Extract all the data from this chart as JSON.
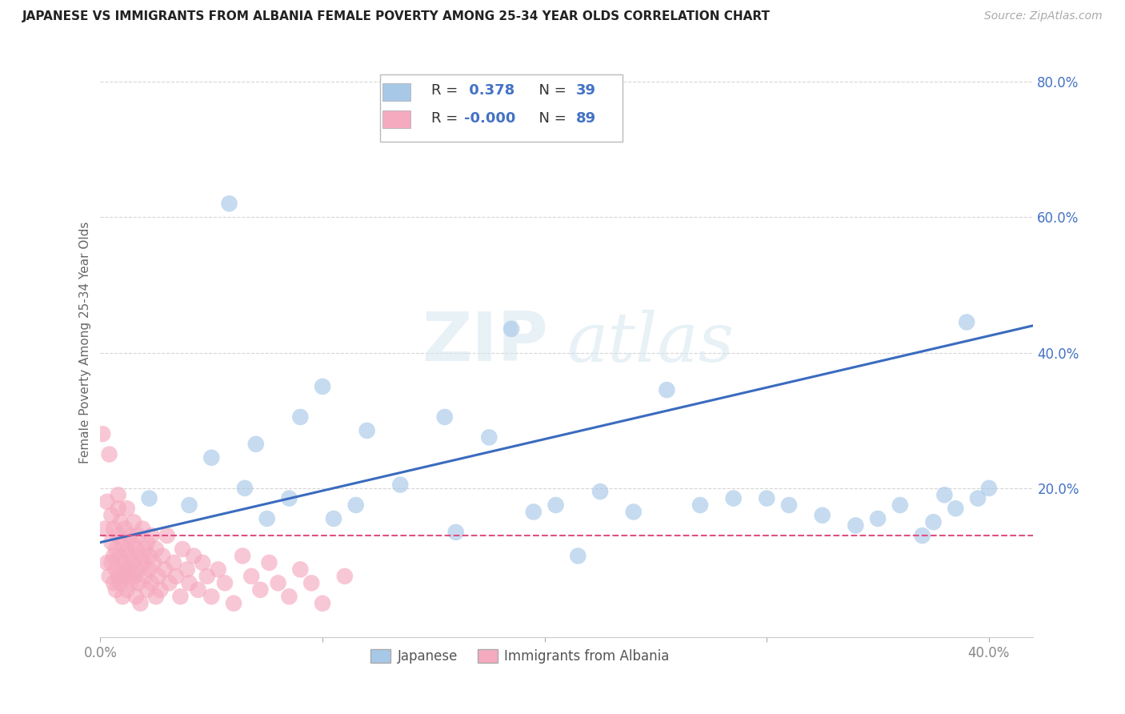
{
  "title": "JAPANESE VS IMMIGRANTS FROM ALBANIA FEMALE POVERTY AMONG 25-34 YEAR OLDS CORRELATION CHART",
  "source": "Source: ZipAtlas.com",
  "ylabel": "Female Poverty Among 25-34 Year Olds",
  "xlim": [
    0.0,
    0.42
  ],
  "ylim": [
    -0.02,
    0.85
  ],
  "xticks": [
    0.0,
    0.1,
    0.2,
    0.3,
    0.4
  ],
  "xticklabels": [
    "0.0%",
    "",
    "",
    "",
    "40.0%"
  ],
  "yticks": [
    0.2,
    0.4,
    0.6,
    0.8
  ],
  "yticklabels": [
    "20.0%",
    "40.0%",
    "60.0%",
    "80.0%"
  ],
  "japanese_R": 0.378,
  "japanese_N": 39,
  "albania_R": -0.0,
  "albania_N": 89,
  "japanese_color": "#a8c8e8",
  "albania_color": "#f5aabf",
  "japanese_line_color": "#3a6bbf",
  "albania_line_color": "#e05080",
  "background_color": "#ffffff",
  "grid_color": "#cccccc",
  "tick_color": "#4472c4",
  "japanese_x": [
    0.022,
    0.04,
    0.05,
    0.058,
    0.065,
    0.07,
    0.075,
    0.085,
    0.09,
    0.1,
    0.105,
    0.115,
    0.12,
    0.135,
    0.155,
    0.16,
    0.175,
    0.185,
    0.195,
    0.205,
    0.215,
    0.225,
    0.24,
    0.255,
    0.27,
    0.285,
    0.3,
    0.31,
    0.325,
    0.34,
    0.35,
    0.36,
    0.37,
    0.375,
    0.38,
    0.385,
    0.39,
    0.395,
    0.4
  ],
  "japanese_y": [
    0.185,
    0.175,
    0.245,
    0.62,
    0.2,
    0.265,
    0.155,
    0.185,
    0.305,
    0.35,
    0.155,
    0.175,
    0.285,
    0.205,
    0.305,
    0.135,
    0.275,
    0.435,
    0.165,
    0.175,
    0.1,
    0.195,
    0.165,
    0.345,
    0.175,
    0.185,
    0.185,
    0.175,
    0.16,
    0.145,
    0.155,
    0.175,
    0.13,
    0.15,
    0.19,
    0.17,
    0.445,
    0.185,
    0.2
  ],
  "albania_x": [
    0.001,
    0.002,
    0.003,
    0.003,
    0.004,
    0.004,
    0.005,
    0.005,
    0.005,
    0.006,
    0.006,
    0.006,
    0.007,
    0.007,
    0.007,
    0.008,
    0.008,
    0.008,
    0.008,
    0.009,
    0.009,
    0.009,
    0.01,
    0.01,
    0.01,
    0.011,
    0.011,
    0.011,
    0.012,
    0.012,
    0.012,
    0.013,
    0.013,
    0.013,
    0.014,
    0.014,
    0.015,
    0.015,
    0.015,
    0.016,
    0.016,
    0.017,
    0.017,
    0.017,
    0.018,
    0.018,
    0.019,
    0.019,
    0.02,
    0.02,
    0.021,
    0.021,
    0.022,
    0.022,
    0.023,
    0.023,
    0.024,
    0.025,
    0.025,
    0.026,
    0.027,
    0.028,
    0.029,
    0.03,
    0.031,
    0.033,
    0.034,
    0.036,
    0.037,
    0.039,
    0.04,
    0.042,
    0.044,
    0.046,
    0.048,
    0.05,
    0.053,
    0.056,
    0.06,
    0.064,
    0.068,
    0.072,
    0.076,
    0.08,
    0.085,
    0.09,
    0.095,
    0.1,
    0.11
  ],
  "albania_y": [
    0.28,
    0.14,
    0.09,
    0.18,
    0.25,
    0.07,
    0.12,
    0.09,
    0.16,
    0.06,
    0.1,
    0.14,
    0.05,
    0.11,
    0.08,
    0.17,
    0.07,
    0.13,
    0.19,
    0.06,
    0.1,
    0.15,
    0.08,
    0.12,
    0.04,
    0.09,
    0.14,
    0.07,
    0.11,
    0.17,
    0.05,
    0.13,
    0.08,
    0.1,
    0.06,
    0.12,
    0.09,
    0.15,
    0.07,
    0.11,
    0.04,
    0.08,
    0.13,
    0.06,
    0.1,
    0.03,
    0.09,
    0.14,
    0.07,
    0.11,
    0.05,
    0.12,
    0.08,
    0.1,
    0.06,
    0.13,
    0.09,
    0.04,
    0.11,
    0.07,
    0.05,
    0.1,
    0.08,
    0.13,
    0.06,
    0.09,
    0.07,
    0.04,
    0.11,
    0.08,
    0.06,
    0.1,
    0.05,
    0.09,
    0.07,
    0.04,
    0.08,
    0.06,
    0.03,
    0.1,
    0.07,
    0.05,
    0.09,
    0.06,
    0.04,
    0.08,
    0.06,
    0.03,
    0.07
  ],
  "jp_line_x0": 0.0,
  "jp_line_y0": 0.12,
  "jp_line_x1": 0.42,
  "jp_line_y1": 0.44,
  "al_line_y": 0.13,
  "al_line_x0": 0.0,
  "al_line_x1": 0.42
}
